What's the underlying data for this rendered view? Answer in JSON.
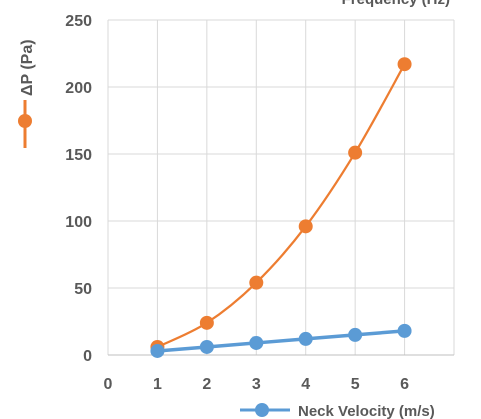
{
  "chart_data": {
    "type": "line",
    "title": "",
    "xlabel": "",
    "ylabel": "",
    "xlim": [
      0,
      7
    ],
    "ylim": [
      0,
      250
    ],
    "x_ticks": [
      0,
      1,
      2,
      3,
      4,
      5,
      6
    ],
    "y_ticks": [
      0,
      50,
      100,
      150,
      200,
      250
    ],
    "grid": "vertical-and-horizontal",
    "legend": [
      {
        "label": "ΔP (Pa)",
        "color": "#ED7D31",
        "placement": "left"
      },
      {
        "label": "Neck Velocity (m/s)",
        "color": "#5B9BD5",
        "placement": "bottom-right"
      },
      {
        "label": "Frequency (Hz)",
        "placement": "top-right"
      }
    ],
    "series": [
      {
        "color": "#ED7D31",
        "x": [
          1,
          2,
          3,
          4,
          5,
          6
        ],
        "y": [
          6,
          24,
          54,
          96,
          151,
          217
        ]
      },
      {
        "color": "#5B9BD5",
        "x": [
          1,
          2,
          3,
          4,
          5,
          6
        ],
        "y": [
          3,
          6,
          9,
          12,
          15,
          18
        ]
      }
    ]
  }
}
